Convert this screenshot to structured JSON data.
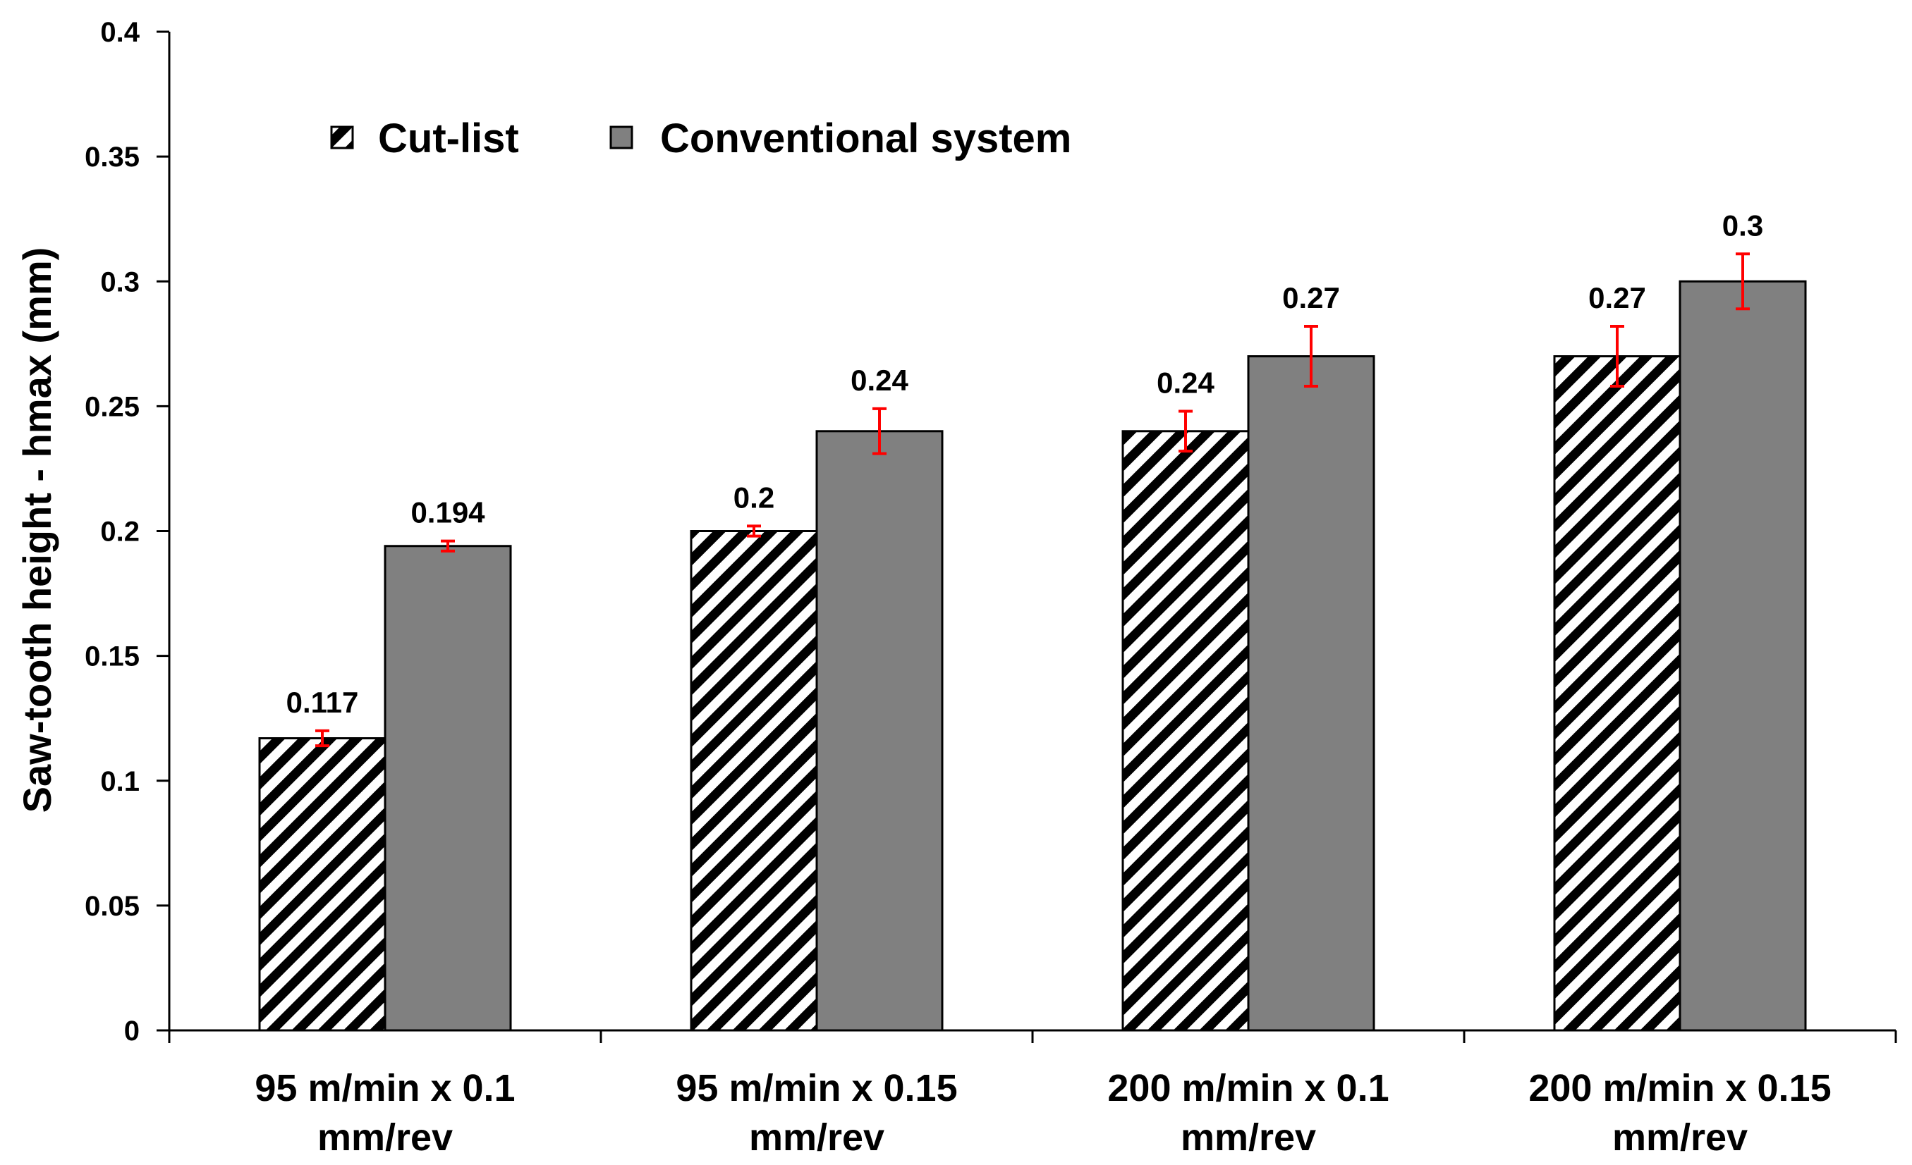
{
  "chart_data": {
    "type": "bar",
    "title": "",
    "xlabel": "",
    "ylabel": "Saw-tooth height - hmax (mm)",
    "ylim": [
      0,
      0.4
    ],
    "yticks": [
      "0",
      "0.05",
      "0.1",
      "0.15",
      "0.2",
      "0.25",
      "0.3",
      "0.35",
      "0.4"
    ],
    "categories": [
      [
        "95 m/min x 0.1",
        "mm/rev"
      ],
      [
        "95 m/min x 0.15",
        "mm/rev"
      ],
      [
        "200 m/min x 0.1",
        "mm/rev"
      ],
      [
        "200 m/min x 0.15",
        "mm/rev"
      ]
    ],
    "series": [
      {
        "name": "Cut-list",
        "pattern": "diagonal-hatch",
        "color": "#000000",
        "values": [
          0.117,
          0.2,
          0.24,
          0.27
        ],
        "value_labels": [
          "0.117",
          "0.2",
          "0.24",
          "0.27"
        ],
        "error": [
          0.003,
          0.002,
          0.008,
          0.012
        ]
      },
      {
        "name": "Conventional  system",
        "pattern": "solid",
        "color": "#808080",
        "values": [
          0.194,
          0.24,
          0.27,
          0.3
        ],
        "value_labels": [
          "0.194",
          "0.24",
          "0.27",
          "0.3"
        ],
        "error": [
          0.002,
          0.009,
          0.012,
          0.011
        ]
      }
    ],
    "error_bar_color": "#ff0000",
    "legend_position": "top-left",
    "grid": false
  }
}
